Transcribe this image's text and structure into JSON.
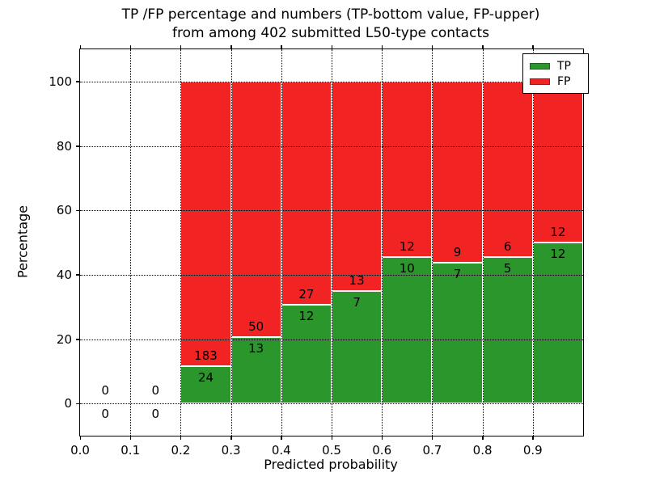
{
  "chart_data": {
    "type": "bar",
    "stacked": true,
    "title_lines": [
      "TP /FP percentage and numbers (TP-bottom value, FP-upper)",
      "from among 402 submitted L50-type contacts"
    ],
    "xlabel": "Predicted probability",
    "ylabel": "Percentage",
    "xlim": [
      0.0,
      1.0
    ],
    "ylim": [
      -10,
      110
    ],
    "bin_width": 0.1,
    "total_contacts": 402,
    "xticks": [
      {
        "v": 0.0,
        "label": "0.0"
      },
      {
        "v": 0.1,
        "label": "0.1"
      },
      {
        "v": 0.2,
        "label": "0.2"
      },
      {
        "v": 0.3,
        "label": "0.3"
      },
      {
        "v": 0.4,
        "label": "0.4"
      },
      {
        "v": 0.5,
        "label": "0.5"
      },
      {
        "v": 0.6,
        "label": "0.6"
      },
      {
        "v": 0.7,
        "label": "0.7"
      },
      {
        "v": 0.8,
        "label": "0.8"
      },
      {
        "v": 0.9,
        "label": "0.9"
      }
    ],
    "yticks": [
      {
        "v": 0,
        "label": "0"
      },
      {
        "v": 20,
        "label": "20"
      },
      {
        "v": 40,
        "label": "40"
      },
      {
        "v": 60,
        "label": "60"
      },
      {
        "v": 80,
        "label": "80"
      },
      {
        "v": 100,
        "label": "100"
      }
    ],
    "bins": [
      {
        "x": 0.0,
        "tp": 0,
        "fp": 0,
        "tp_pct": 0,
        "fp_pct": 0
      },
      {
        "x": 0.1,
        "tp": 0,
        "fp": 0,
        "tp_pct": 0,
        "fp_pct": 0
      },
      {
        "x": 0.2,
        "tp": 24,
        "fp": 183,
        "tp_pct": 11.594,
        "fp_pct": 88.406
      },
      {
        "x": 0.3,
        "tp": 13,
        "fp": 50,
        "tp_pct": 20.635,
        "fp_pct": 79.365
      },
      {
        "x": 0.4,
        "tp": 12,
        "fp": 27,
        "tp_pct": 30.769,
        "fp_pct": 69.231
      },
      {
        "x": 0.5,
        "tp": 7,
        "fp": 13,
        "tp_pct": 35.0,
        "fp_pct": 65.0
      },
      {
        "x": 0.6,
        "tp": 10,
        "fp": 12,
        "tp_pct": 45.455,
        "fp_pct": 54.545
      },
      {
        "x": 0.7,
        "tp": 7,
        "fp": 9,
        "tp_pct": 43.75,
        "fp_pct": 56.25
      },
      {
        "x": 0.8,
        "tp": 5,
        "fp": 6,
        "tp_pct": 45.455,
        "fp_pct": 54.545
      },
      {
        "x": 0.9,
        "tp": 12,
        "fp": 12,
        "tp_pct": 50.0,
        "fp_pct": 50.0
      }
    ],
    "legend": [
      {
        "label": "TP",
        "color": "#2B962B"
      },
      {
        "label": "FP",
        "color": "#F22323"
      }
    ],
    "colors": {
      "tp": "#2B962B",
      "fp": "#F22323",
      "grid": "#000000",
      "bar_edge": "#ffffff"
    },
    "legend_position": "upper-right",
    "grid": true
  }
}
